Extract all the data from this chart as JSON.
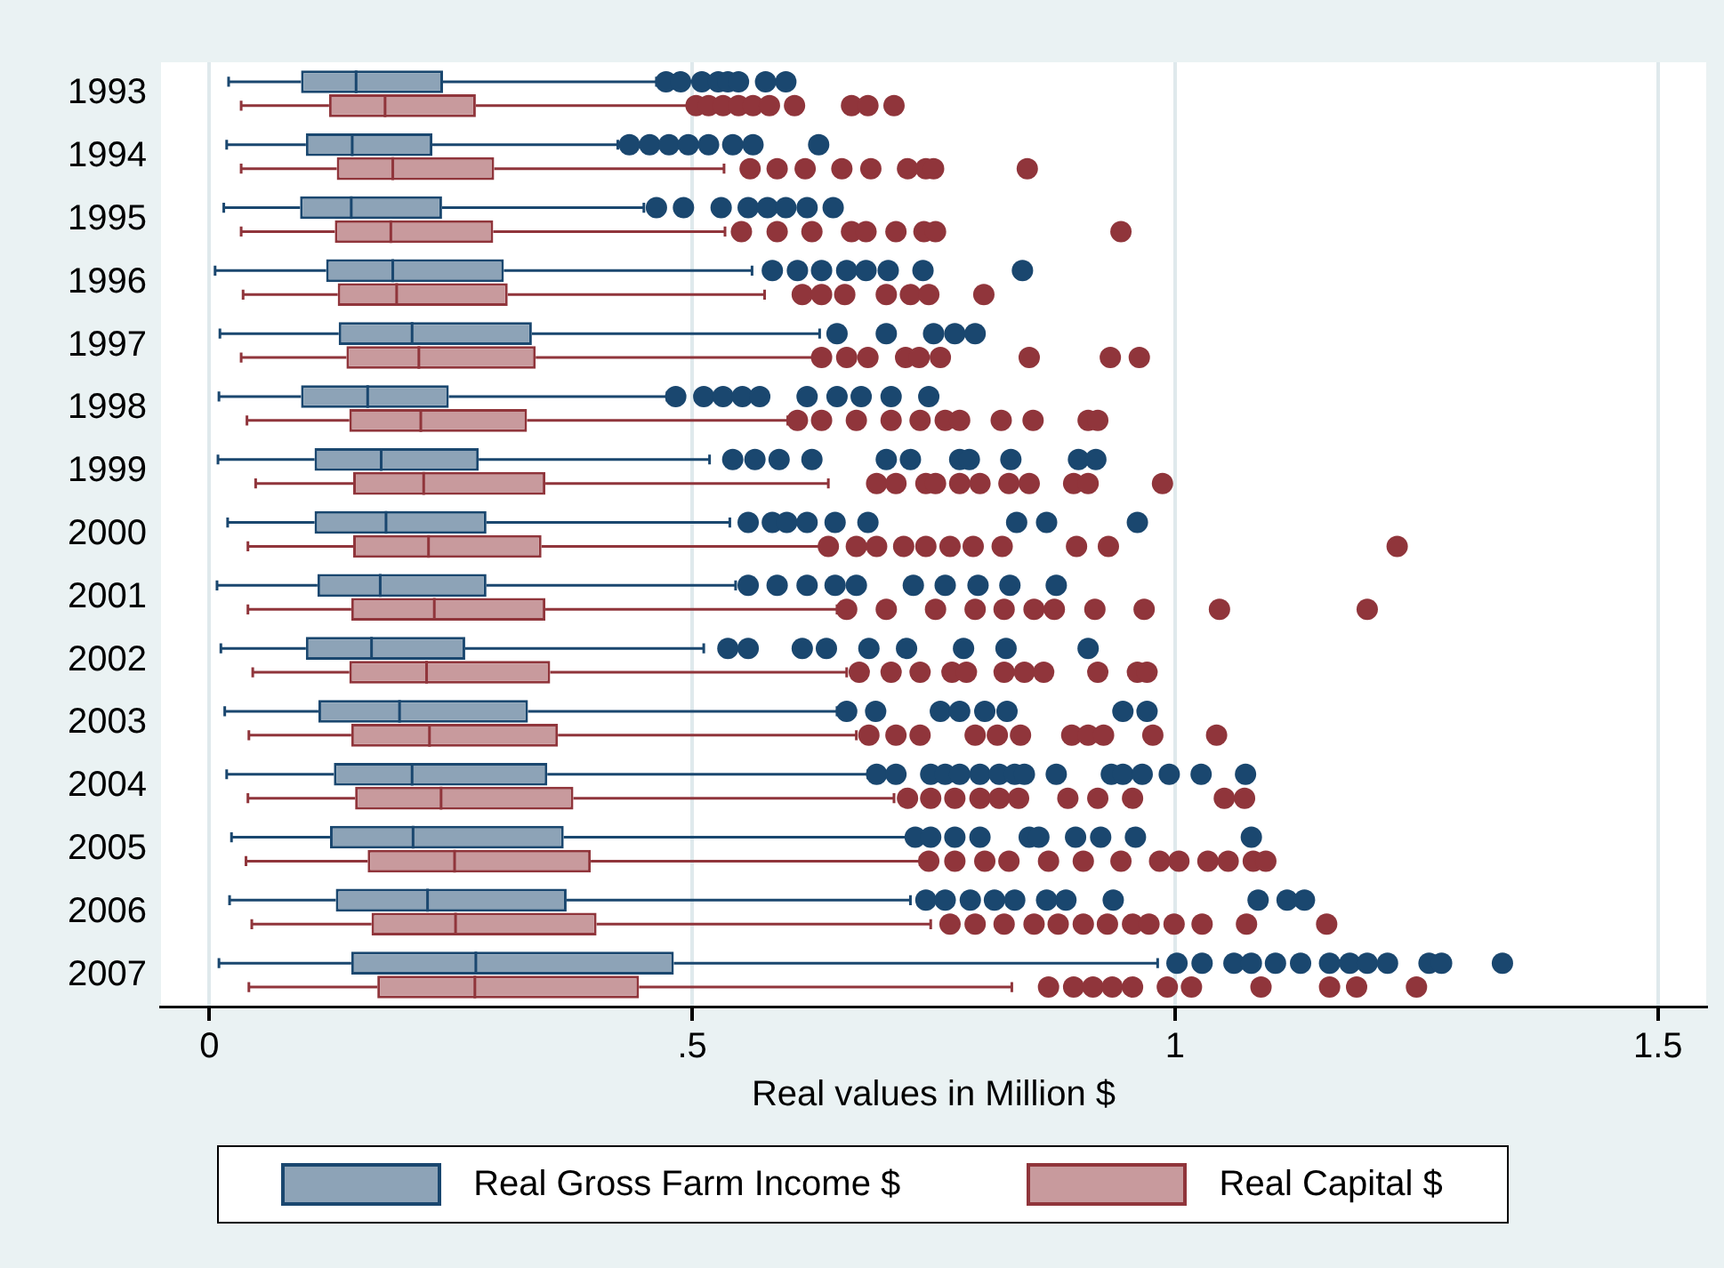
{
  "chart_data": {
    "type": "box",
    "orientation": "horizontal",
    "xlabel": "Real values in Million $",
    "categories": [
      "1993",
      "1994",
      "1995",
      "1996",
      "1997",
      "1998",
      "1999",
      "2000",
      "2001",
      "2002",
      "2003",
      "2004",
      "2005",
      "2006",
      "2007"
    ],
    "xlim": [
      -0.05,
      1.55
    ],
    "xticks": [
      0,
      {
        "value": 0.5,
        "label": ".5"
      },
      1,
      1.5
    ],
    "grid": "x",
    "legend": "bottom",
    "marker": "circle",
    "series": [
      {
        "name": "Real Gross Farm Income $",
        "color": "#1a476f",
        "boxes": [
          {
            "low": 0.02,
            "q1": 0.095,
            "median": 0.152,
            "q3": 0.242,
            "high": 0.463,
            "outliers": [
              0.473,
              0.488,
              0.51,
              0.527,
              0.537,
              0.548,
              0.576,
              0.597
            ]
          },
          {
            "low": 0.018,
            "q1": 0.1,
            "median": 0.148,
            "q3": 0.231,
            "high": 0.423,
            "outliers": [
              0.435,
              0.456,
              0.476,
              0.496,
              0.517,
              0.542,
              0.563,
              0.631
            ]
          },
          {
            "low": 0.015,
            "q1": 0.094,
            "median": 0.147,
            "q3": 0.241,
            "high": 0.45,
            "outliers": [
              0.463,
              0.491,
              0.53,
              0.558,
              0.578,
              0.597,
              0.619,
              0.646
            ]
          },
          {
            "low": 0.006,
            "q1": 0.121,
            "median": 0.19,
            "q3": 0.305,
            "high": 0.562,
            "outliers": [
              0.583,
              0.609,
              0.634,
              0.66,
              0.68,
              0.703,
              0.739,
              0.842
            ]
          },
          {
            "low": 0.011,
            "q1": 0.134,
            "median": 0.21,
            "q3": 0.334,
            "high": 0.632,
            "outliers": [
              0.65,
              0.701,
              0.75,
              0.772,
              0.793
            ]
          },
          {
            "low": 0.01,
            "q1": 0.095,
            "median": 0.164,
            "q3": 0.248,
            "high": 0.474,
            "outliers": [
              0.483,
              0.512,
              0.532,
              0.552,
              0.57,
              0.619,
              0.65,
              0.675,
              0.706,
              0.745
            ]
          },
          {
            "low": 0.009,
            "q1": 0.109,
            "median": 0.178,
            "q3": 0.279,
            "high": 0.518,
            "outliers": [
              0.542,
              0.565,
              0.59,
              0.624,
              0.701,
              0.726,
              0.777,
              0.787,
              0.83,
              0.9,
              0.918
            ]
          },
          {
            "low": 0.019,
            "q1": 0.109,
            "median": 0.183,
            "q3": 0.287,
            "high": 0.539,
            "outliers": [
              0.558,
              0.583,
              0.598,
              0.619,
              0.648,
              0.682,
              0.836,
              0.867,
              0.961
            ]
          },
          {
            "low": 0.008,
            "q1": 0.112,
            "median": 0.177,
            "q3": 0.287,
            "high": 0.545,
            "outliers": [
              0.558,
              0.588,
              0.619,
              0.648,
              0.67,
              0.729,
              0.762,
              0.796,
              0.829,
              0.877
            ]
          },
          {
            "low": 0.012,
            "q1": 0.1,
            "median": 0.168,
            "q3": 0.265,
            "high": 0.512,
            "outliers": [
              0.537,
              0.558,
              0.614,
              0.639,
              0.683,
              0.722,
              0.781,
              0.825,
              0.91
            ]
          },
          {
            "low": 0.016,
            "q1": 0.113,
            "median": 0.197,
            "q3": 0.33,
            "high": 0.65,
            "outliers": [
              0.66,
              0.69,
              0.757,
              0.777,
              0.803,
              0.826,
              0.946,
              0.971
            ]
          },
          {
            "low": 0.018,
            "q1": 0.129,
            "median": 0.21,
            "q3": 0.35,
            "high": 0.682,
            "outliers": [
              0.691,
              0.711,
              0.747,
              0.762,
              0.777,
              0.798,
              0.818,
              0.834,
              0.844,
              0.877,
              0.934,
              0.946,
              0.966,
              0.994,
              1.027,
              1.073
            ]
          },
          {
            "low": 0.023,
            "q1": 0.125,
            "median": 0.211,
            "q3": 0.367,
            "high": 0.723,
            "outliers": [
              0.731,
              0.747,
              0.772,
              0.798,
              0.849,
              0.859,
              0.897,
              0.923,
              0.959,
              1.079
            ]
          },
          {
            "low": 0.021,
            "q1": 0.131,
            "median": 0.226,
            "q3": 0.37,
            "high": 0.726,
            "outliers": [
              0.742,
              0.762,
              0.788,
              0.813,
              0.834,
              0.867,
              0.887,
              0.936,
              1.086,
              1.116,
              1.134
            ]
          },
          {
            "low": 0.01,
            "q1": 0.147,
            "median": 0.276,
            "q3": 0.481,
            "high": 0.982,
            "outliers": [
              1.002,
              1.028,
              1.061,
              1.079,
              1.104,
              1.13,
              1.16,
              1.181,
              1.199,
              1.22,
              1.263,
              1.276,
              1.339
            ]
          }
        ]
      },
      {
        "name": "Real Capital $",
        "color": "#90353b",
        "boxes": [
          {
            "low": 0.033,
            "q1": 0.124,
            "median": 0.182,
            "q3": 0.276,
            "high": 0.496,
            "outliers": [
              0.504,
              0.517,
              0.532,
              0.548,
              0.563,
              0.58,
              0.606,
              0.665,
              0.682,
              0.709
            ]
          },
          {
            "low": 0.033,
            "q1": 0.132,
            "median": 0.19,
            "q3": 0.295,
            "high": 0.533,
            "outliers": [
              0.56,
              0.588,
              0.617,
              0.655,
              0.685,
              0.723,
              0.742,
              0.75,
              0.847
            ]
          },
          {
            "low": 0.033,
            "q1": 0.13,
            "median": 0.188,
            "q3": 0.294,
            "high": 0.534,
            "outliers": [
              0.551,
              0.588,
              0.624,
              0.665,
              0.68,
              0.711,
              0.74,
              0.752,
              0.944
            ]
          },
          {
            "low": 0.035,
            "q1": 0.133,
            "median": 0.194,
            "q3": 0.309,
            "high": 0.575,
            "outliers": [
              0.614,
              0.634,
              0.658,
              0.701,
              0.726,
              0.745,
              0.802
            ]
          },
          {
            "low": 0.033,
            "q1": 0.142,
            "median": 0.217,
            "q3": 0.338,
            "high": 0.627,
            "outliers": [
              0.634,
              0.66,
              0.682,
              0.721,
              0.735,
              0.757,
              0.849,
              0.933,
              0.963
            ]
          },
          {
            "low": 0.039,
            "q1": 0.145,
            "median": 0.219,
            "q3": 0.329,
            "high": 0.599,
            "outliers": [
              0.609,
              0.634,
              0.67,
              0.706,
              0.736,
              0.762,
              0.777,
              0.82,
              0.853,
              0.91,
              0.92
            ]
          },
          {
            "low": 0.048,
            "q1": 0.149,
            "median": 0.222,
            "q3": 0.348,
            "high": 0.641,
            "outliers": [
              0.691,
              0.711,
              0.742,
              0.752,
              0.777,
              0.798,
              0.828,
              0.849,
              0.895,
              0.91,
              0.987
            ]
          },
          {
            "low": 0.04,
            "q1": 0.149,
            "median": 0.227,
            "q3": 0.344,
            "high": 0.634,
            "outliers": [
              0.641,
              0.67,
              0.691,
              0.719,
              0.742,
              0.767,
              0.791,
              0.821,
              0.898,
              0.931,
              1.23
            ]
          },
          {
            "low": 0.04,
            "q1": 0.147,
            "median": 0.233,
            "q3": 0.348,
            "high": 0.65,
            "outliers": [
              0.66,
              0.701,
              0.752,
              0.793,
              0.823,
              0.854,
              0.875,
              0.917,
              0.968,
              1.046,
              1.199
            ]
          },
          {
            "low": 0.045,
            "q1": 0.145,
            "median": 0.225,
            "q3": 0.353,
            "high": 0.66,
            "outliers": [
              0.673,
              0.706,
              0.736,
              0.769,
              0.784,
              0.823,
              0.844,
              0.864,
              0.92,
              0.961,
              0.971
            ]
          },
          {
            "low": 0.041,
            "q1": 0.147,
            "median": 0.228,
            "q3": 0.361,
            "high": 0.67,
            "outliers": [
              0.683,
              0.711,
              0.736,
              0.793,
              0.816,
              0.84,
              0.893,
              0.91,
              0.926,
              0.977,
              1.043
            ]
          },
          {
            "low": 0.04,
            "q1": 0.151,
            "median": 0.24,
            "q3": 0.377,
            "high": 0.709,
            "outliers": [
              0.723,
              0.747,
              0.772,
              0.798,
              0.818,
              0.838,
              0.889,
              0.92,
              0.956,
              1.051,
              1.072
            ]
          },
          {
            "low": 0.038,
            "q1": 0.164,
            "median": 0.254,
            "q3": 0.395,
            "high": 0.736,
            "outliers": [
              0.745,
              0.772,
              0.803,
              0.828,
              0.869,
              0.905,
              0.944,
              0.984,
              1.004,
              1.034,
              1.055,
              1.081,
              1.094
            ]
          },
          {
            "low": 0.044,
            "q1": 0.168,
            "median": 0.255,
            "q3": 0.401,
            "high": 0.747,
            "outliers": [
              0.767,
              0.793,
              0.823,
              0.854,
              0.879,
              0.905,
              0.93,
              0.956,
              0.973,
              0.999,
              1.028,
              1.074,
              1.157
            ]
          },
          {
            "low": 0.041,
            "q1": 0.174,
            "median": 0.275,
            "q3": 0.445,
            "high": 0.831,
            "outliers": [
              0.869,
              0.895,
              0.915,
              0.935,
              0.956,
              0.992,
              1.017,
              1.089,
              1.16,
              1.188,
              1.25
            ]
          }
        ]
      }
    ]
  }
}
